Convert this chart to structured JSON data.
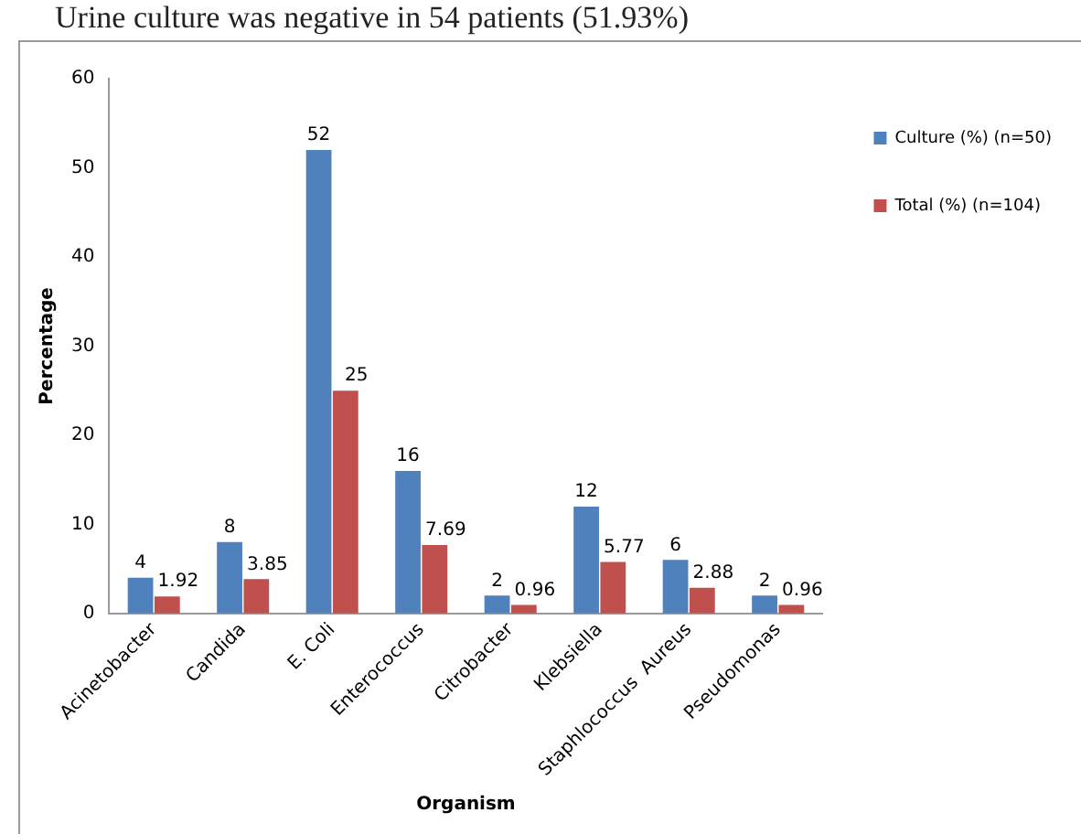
{
  "chart_data": {
    "type": "bar",
    "annotations": [
      "Urine culture was negative in 54 patients (51.93%)"
    ],
    "xlabel": "Organism",
    "ylabel": "Percentage",
    "categories": [
      "Acinetobacter",
      "Candida",
      "E. Coli",
      "Enterococcus",
      "Citrobacter",
      "Klebsiella",
      "Staphlococcus  Aureus",
      "Pseudomonas"
    ],
    "series": [
      {
        "name": "Culture (%) (n=50)",
        "color": "#4f81bd",
        "values": [
          4,
          8,
          52,
          16,
          2,
          12,
          6,
          2
        ]
      },
      {
        "name": "Total (%) (n=104)",
        "color": "#c0504d",
        "values": [
          1.92,
          3.85,
          25,
          7.69,
          0.96,
          5.77,
          2.88,
          0.96
        ]
      }
    ],
    "ylim": [
      0,
      60
    ],
    "yticks": [
      0,
      10,
      20,
      30,
      40,
      50,
      60
    ],
    "grid": false,
    "legend": "right",
    "data_labels": true
  }
}
